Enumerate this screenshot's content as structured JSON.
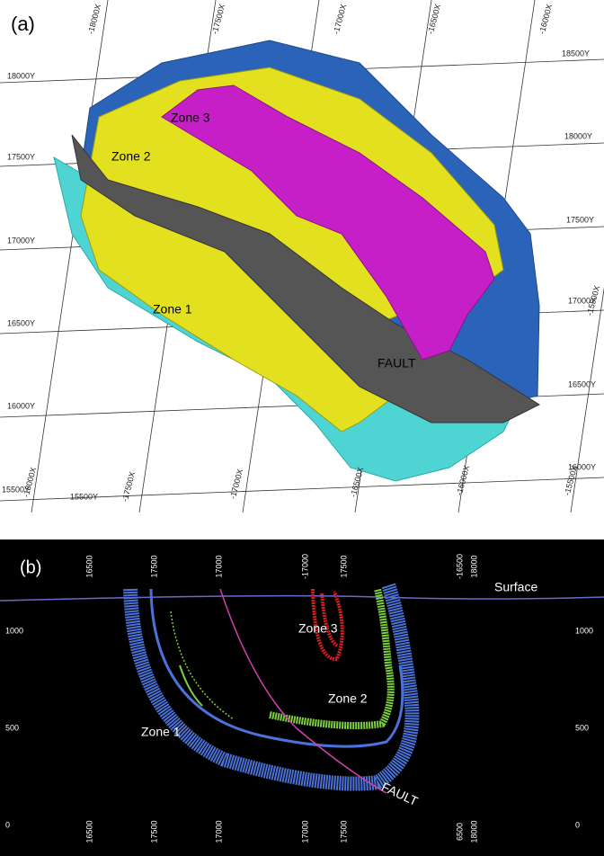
{
  "panel_a": {
    "label": "(a)",
    "zones": [
      "Zone 3",
      "Zone 2",
      "Zone 1",
      "FAULT"
    ],
    "left_labels": [
      "18000Y",
      "17500Y",
      "17000Y",
      "16500Y",
      "16000Y",
      "15500Y"
    ],
    "right_labels": [
      "18500Y",
      "18000Y",
      "17500Y",
      "17000Y",
      "16500Y",
      "16000Y"
    ],
    "top_labels": [
      "-18000X",
      "-17500X",
      "-17000X",
      "-16500X",
      "-16000X"
    ],
    "bottom_labels": [
      "-18000X",
      "15500Y",
      "-17500X",
      "-17000X",
      "-16500X",
      "-16000X",
      "-15500X",
      "-15500X"
    ]
  },
  "panel_b": {
    "label": "(b)",
    "surface": "Surface",
    "fault": "FAULT",
    "zones": [
      "Zone 3",
      "Zone 2",
      "Zone 1"
    ],
    "top_labels": [
      "16500",
      "17500",
      "17000",
      "-17000",
      "17500",
      "-16500",
      "18000"
    ],
    "bottom_labels": [
      "16500",
      "17500",
      "17000",
      "17000",
      "17500",
      "6500",
      "18000"
    ],
    "left_labels": [
      "1000",
      "500",
      "0"
    ],
    "right_labels": [
      "1000",
      "500",
      "0"
    ]
  }
}
